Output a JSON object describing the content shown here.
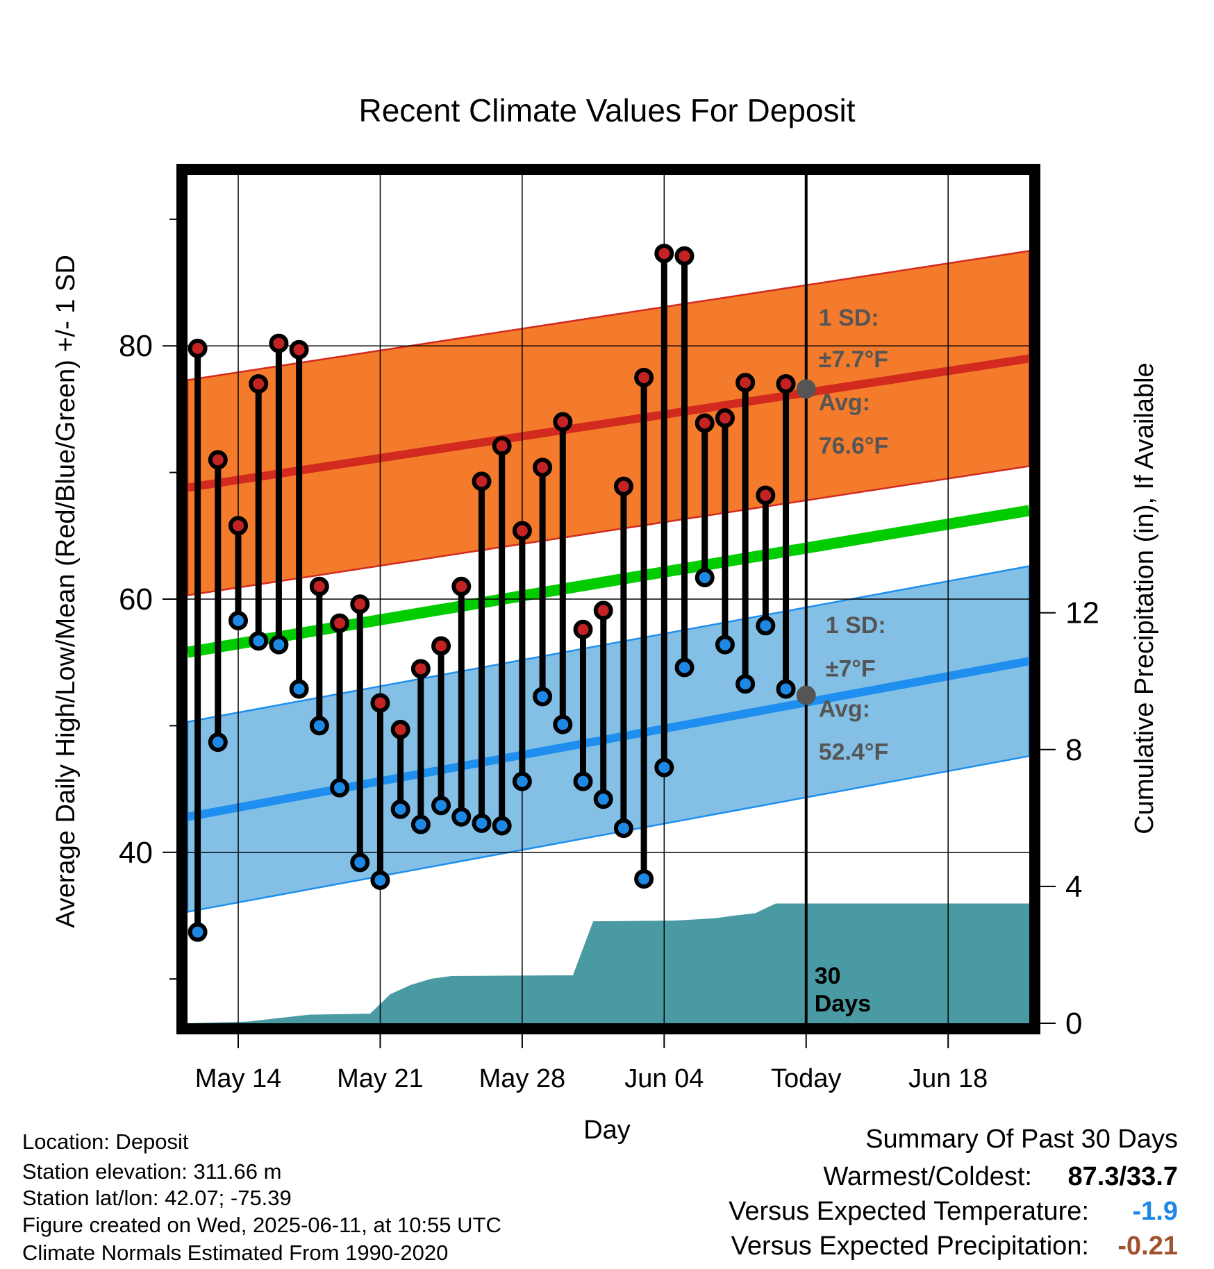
{
  "chart_data": {
    "type": "line",
    "title": "Recent Climate Values For Deposit",
    "xlabel": "Day",
    "ylabel": "Average Daily High/Low/Mean (Red/Blue/Green) +/- 1 SD",
    "y2label": "Cumulative Precipitation (in), If Available",
    "xlim": [
      0,
      41.5
    ],
    "ylim": [
      26.5,
      93.5
    ],
    "y2lim": [
      0,
      24.8
    ],
    "yticks": [
      40,
      60,
      80
    ],
    "y2ticks": [
      0,
      4,
      8,
      12
    ],
    "xticks": [
      {
        "x": 2.5,
        "label": "May 14"
      },
      {
        "x": 9.5,
        "label": "May 21"
      },
      {
        "x": 16.5,
        "label": "May 28"
      },
      {
        "x": 23.5,
        "label": "Jun 04"
      },
      {
        "x": 30.5,
        "label": "Today"
      },
      {
        "x": 37.5,
        "label": "Jun 18"
      }
    ],
    "today_x": 30.5,
    "today_label_line1": "30",
    "today_label_line2": "Days",
    "normal_high": {
      "start": 68.8,
      "end": 79.0,
      "sd": 8.5
    },
    "normal_low": {
      "start": 42.8,
      "end": 55.1,
      "sd": 7.5
    },
    "normal_mean": {
      "start": 55.8,
      "end": 67.0
    },
    "annotations": {
      "high_sd": "1 SD:",
      "high_sd_value": "±7.7°F",
      "high_avg": "Avg:",
      "high_avg_value": "76.6°F",
      "low_sd": "1 SD:",
      "low_sd_value": "±7°F",
      "low_avg": "Avg:",
      "low_avg_value": "52.4°F"
    },
    "avg_markers": [
      {
        "x": 30.5,
        "y": 76.6
      },
      {
        "x": 30.5,
        "y": 52.4
      }
    ],
    "days": [
      1,
      2,
      3,
      4,
      5,
      6,
      7,
      8,
      9,
      10,
      11,
      12,
      13,
      14,
      15,
      16,
      17,
      18,
      19,
      20,
      21,
      22,
      23,
      24,
      25,
      26,
      27,
      28,
      29,
      30
    ],
    "series": [
      {
        "name": "High",
        "values": [
          79.8,
          71.0,
          65.8,
          77.0,
          80.2,
          79.7,
          61.0,
          58.1,
          59.6,
          51.8,
          49.7,
          54.5,
          56.3,
          61.0,
          69.3,
          72.1,
          65.4,
          70.4,
          74.0,
          57.6,
          59.1,
          68.9,
          77.5,
          87.3,
          87.1,
          73.9,
          74.3,
          77.1,
          68.2,
          77.0
        ]
      },
      {
        "name": "Low",
        "values": [
          33.7,
          48.7,
          58.3,
          56.7,
          56.4,
          52.9,
          50.0,
          45.1,
          39.2,
          37.8,
          43.4,
          42.2,
          43.7,
          42.8,
          42.3,
          42.1,
          45.6,
          52.3,
          50.1,
          45.6,
          44.2,
          41.9,
          37.9,
          46.7,
          54.6,
          61.7,
          56.4,
          53.3,
          57.9,
          52.9
        ]
      }
    ],
    "precip_cumulative": [
      {
        "x": 0.0,
        "y": 0.0
      },
      {
        "x": 3.0,
        "y": 0.05
      },
      {
        "x": 6.0,
        "y": 0.25
      },
      {
        "x": 9.0,
        "y": 0.28
      },
      {
        "x": 10.0,
        "y": 0.85
      },
      {
        "x": 11.0,
        "y": 1.12
      },
      {
        "x": 12.0,
        "y": 1.3
      },
      {
        "x": 13.0,
        "y": 1.38
      },
      {
        "x": 18.0,
        "y": 1.4
      },
      {
        "x": 19.0,
        "y": 1.4
      },
      {
        "x": 20.0,
        "y": 2.98
      },
      {
        "x": 24.0,
        "y": 3.0
      },
      {
        "x": 26.0,
        "y": 3.07
      },
      {
        "x": 27.0,
        "y": 3.15
      },
      {
        "x": 28.0,
        "y": 3.22
      },
      {
        "x": 29.0,
        "y": 3.5
      },
      {
        "x": 41.5,
        "y": 3.5
      }
    ],
    "colors": {
      "high_band": "#f47b2c",
      "high_line": "#d22a1e",
      "low_band": "#84c0e6",
      "low_line": "#1e8fef",
      "mean_line": "#00cc00",
      "precip": "#4a9aa3",
      "high_dot": "#c42323",
      "low_dot": "#1e88e5",
      "annotation": "#555555"
    }
  },
  "info": {
    "location": "Location: Deposit",
    "elevation": "Station elevation: 311.66 m",
    "latlon": "Station lat/lon: 42.07; -75.39",
    "created": "Figure created on Wed, 2025-06-11, at 10:55 UTC",
    "normals": "Climate Normals Estimated From 1990-2020"
  },
  "summary": {
    "title": "Summary Of Past 30 Days",
    "warm_cold_label": "Warmest/Coldest:",
    "warm_cold_value": "87.3/33.7",
    "temp_label": "Versus Expected Temperature:",
    "temp_value": "-1.9",
    "temp_color": "#1e88e5",
    "precip_label": "Versus Expected Precipitation:",
    "precip_value": "-0.21",
    "precip_color": "#a0522d"
  }
}
